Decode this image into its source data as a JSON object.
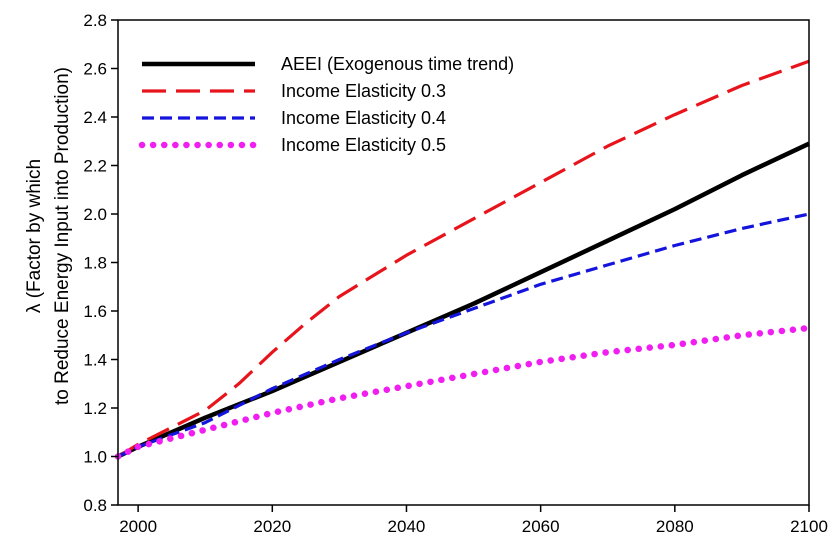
{
  "chart_data": {
    "type": "line",
    "title": "",
    "xlabel": "",
    "ylabel_line1": "λ (Factor by which",
    "ylabel_line2": "to Reduce Energy Input into Production)",
    "xlim": [
      1997,
      2100
    ],
    "ylim": [
      0.8,
      2.8
    ],
    "xticks": [
      2000,
      2020,
      2040,
      2060,
      2080,
      2100
    ],
    "yticks": [
      0.8,
      1.0,
      1.2,
      1.4,
      1.6,
      1.8,
      2.0,
      2.2,
      2.4,
      2.6,
      2.8
    ],
    "ytick_labels": [
      "0.8",
      "1.0",
      "1.2",
      "1.4",
      "1.6",
      "1.8",
      "2.0",
      "2.2",
      "2.4",
      "2.6",
      "2.8"
    ],
    "grid": false,
    "legend_position": "top-left",
    "series": [
      {
        "name": "AEEI (Exogenous time trend)",
        "color": "#000000",
        "style": "solid",
        "x": [
          1997,
          2000,
          2010,
          2020,
          2030,
          2040,
          2050,
          2060,
          2070,
          2080,
          2090,
          2100
        ],
        "y": [
          1.0,
          1.04,
          1.16,
          1.27,
          1.39,
          1.51,
          1.63,
          1.76,
          1.89,
          2.02,
          2.16,
          2.29
        ]
      },
      {
        "name": "Income Elasticity 0.3",
        "color": "#e8141c",
        "style": "long-dash",
        "x": [
          1997,
          2000,
          2005,
          2010,
          2015,
          2020,
          2025,
          2030,
          2040,
          2050,
          2060,
          2070,
          2080,
          2090,
          2100
        ],
        "y": [
          1.0,
          1.05,
          1.12,
          1.19,
          1.3,
          1.43,
          1.55,
          1.66,
          1.83,
          1.98,
          2.13,
          2.28,
          2.41,
          2.53,
          2.63
        ]
      },
      {
        "name": "Income Elasticity 0.4",
        "color": "#1414dc",
        "style": "dash",
        "x": [
          1997,
          2000,
          2010,
          2020,
          2030,
          2040,
          2050,
          2060,
          2070,
          2080,
          2090,
          2100
        ],
        "y": [
          1.0,
          1.04,
          1.14,
          1.28,
          1.4,
          1.51,
          1.61,
          1.71,
          1.79,
          1.87,
          1.94,
          2.0
        ]
      },
      {
        "name": "Income Elasticity 0.5",
        "color": "#f01ef0",
        "style": "dotted",
        "x": [
          1997,
          2000,
          2010,
          2020,
          2030,
          2040,
          2050,
          2060,
          2070,
          2080,
          2090,
          2100
        ],
        "y": [
          1.0,
          1.04,
          1.11,
          1.18,
          1.24,
          1.29,
          1.34,
          1.39,
          1.43,
          1.46,
          1.5,
          1.53
        ]
      }
    ]
  }
}
